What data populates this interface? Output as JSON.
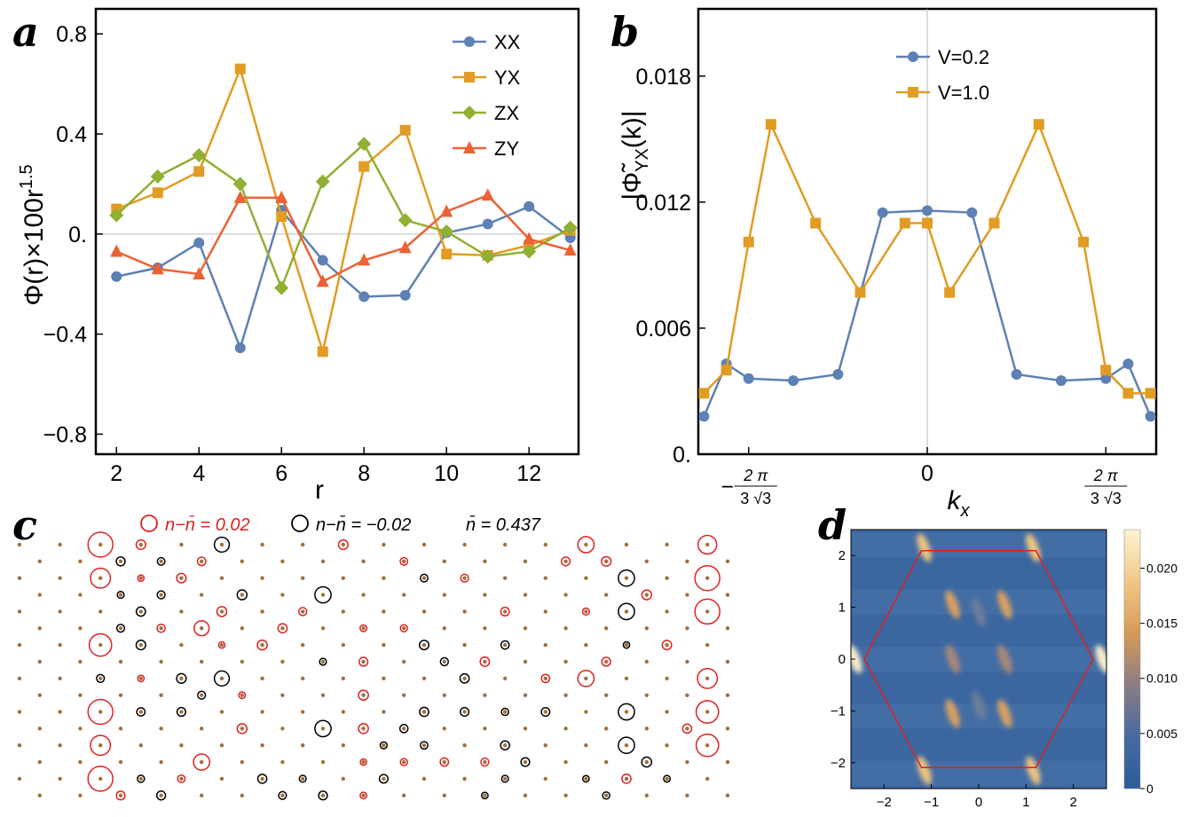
{
  "panel_labels": {
    "a": "a",
    "b": "b",
    "c": "c",
    "d": "d"
  },
  "colors": {
    "blue": "#5e81b5",
    "orange": "#e19c24",
    "green": "#8fb032",
    "red": "#eb6235",
    "lattice_dot": "#a0703a",
    "hexagon": "#e02020"
  },
  "chart_data": [
    {
      "id": "a",
      "type": "line",
      "xlabel": "r",
      "ylabel": "Φ(r)×100r",
      "ylabel_sup": "1.5",
      "xlim": [
        1.5,
        13.2
      ],
      "ylim": [
        -0.88,
        0.9
      ],
      "xticks": [
        2,
        4,
        6,
        8,
        10,
        12
      ],
      "xtick_labels": [
        "2",
        "4",
        "6",
        "8",
        "10",
        "12"
      ],
      "yticks": [
        0.8,
        0.4,
        0.0,
        -0.4,
        -0.8
      ],
      "ytick_labels": [
        "0.8",
        "0.4",
        "0.",
        "−0.4",
        "−0.8"
      ],
      "legend_position": "top-right",
      "x": [
        2,
        3,
        4,
        5,
        6,
        7,
        8,
        9,
        10,
        11,
        12,
        13
      ],
      "series": [
        {
          "name": "XX",
          "color": "#5e81b5",
          "marker": "circle",
          "values": [
            -0.17,
            -0.135,
            -0.035,
            -0.455,
            0.095,
            -0.105,
            -0.25,
            -0.245,
            0.005,
            0.04,
            0.11,
            -0.015
          ]
        },
        {
          "name": "YX",
          "color": "#e19c24",
          "marker": "square",
          "values": [
            0.1,
            0.165,
            0.25,
            0.66,
            0.07,
            -0.47,
            0.27,
            0.415,
            -0.08,
            -0.085,
            -0.045,
            0.015
          ]
        },
        {
          "name": "ZX",
          "color": "#8fb032",
          "marker": "diamond",
          "values": [
            0.075,
            0.23,
            0.315,
            0.2,
            -0.215,
            0.21,
            0.36,
            0.055,
            0.01,
            -0.09,
            -0.07,
            0.025
          ]
        },
        {
          "name": "ZY",
          "color": "#eb6235",
          "marker": "triangle",
          "values": [
            -0.07,
            -0.14,
            -0.16,
            0.145,
            0.145,
            -0.19,
            -0.105,
            -0.055,
            0.09,
            0.155,
            -0.02,
            -0.065
          ]
        }
      ]
    },
    {
      "id": "b",
      "type": "line",
      "xlabel": "k",
      "xlabel_sub": "x",
      "ylabel_main": "|Φ̃",
      "ylabel_sub": "YX",
      "ylabel_tail": "(k)|",
      "xlim": [
        -1.55,
        1.55
      ],
      "ylim": [
        0,
        0.0212
      ],
      "xticks": [
        -1.2092,
        0,
        1.2092
      ],
      "xtick_labels": [
        "−",
        "0",
        ""
      ],
      "xtick_frac_num": "2 π",
      "xtick_frac_den": "3 √3",
      "yticks": [
        0.0,
        0.006,
        0.012,
        0.018
      ],
      "ytick_labels": [
        "0.",
        "0.006",
        "0.012",
        "0.018"
      ],
      "legend_position": "top-left",
      "x": [
        -1.5115,
        -1.3603,
        -1.2092,
        -0.9069,
        -0.6046,
        -0.3023,
        0,
        0.3023,
        0.6046,
        0.9069,
        1.2092,
        1.3603,
        1.5115
      ],
      "series": [
        {
          "name": "V=0.2",
          "color": "#5e81b5",
          "marker": "circle",
          "x": [
            -1.5115,
            -1.3603,
            -1.2092,
            -0.9069,
            -0.6046,
            -0.3023,
            0,
            0.3023,
            0.6046,
            0.9069,
            1.2092,
            1.3603,
            1.5115
          ],
          "values": [
            0.0018,
            0.0043,
            0.0036,
            0.0035,
            0.0038,
            0.0115,
            0.0116,
            0.0115,
            0.0038,
            0.0035,
            0.0036,
            0.0043,
            0.0018
          ]
        },
        {
          "name": "V=1.0",
          "color": "#e19c24",
          "marker": "square",
          "x": [
            -1.5115,
            -1.3603,
            -1.2092,
            -1.0581,
            -0.7558,
            -0.4535,
            -0.1512,
            0,
            0.1512,
            0.4535,
            0.7558,
            1.0581,
            1.2092,
            1.3603,
            1.5115
          ],
          "values": [
            0.0029,
            0.004,
            0.0101,
            0.0157,
            0.011,
            0.0077,
            0.011,
            0.011,
            0.0077,
            0.011,
            0.0157,
            0.0101,
            0.004,
            0.0029,
            0.0029
          ]
        }
      ]
    },
    {
      "id": "c",
      "type": "scatter",
      "legend": [
        {
          "label": "n−n̄ = 0.02",
          "color": "#e02020"
        },
        {
          "label": "n−n̄ = −0.02",
          "color": "#000000"
        },
        {
          "label": "n̄ = 0.437",
          "color": "#000000"
        }
      ],
      "rows": 8,
      "cols": 36,
      "mean_density": 0.437,
      "big_circles": [
        {
          "row": 0,
          "col": 4,
          "dev": 0.02
        },
        {
          "row": 1,
          "col": 4,
          "dev": 0.016
        },
        {
          "row": 3,
          "col": 4,
          "dev": 0.018
        },
        {
          "row": 5,
          "col": 4,
          "dev": 0.02
        },
        {
          "row": 6,
          "col": 4,
          "dev": 0.016
        },
        {
          "row": 7,
          "col": 4,
          "dev": 0.02
        },
        {
          "row": 0,
          "col": 34,
          "dev": 0.015
        },
        {
          "row": 1,
          "col": 34,
          "dev": 0.02
        },
        {
          "row": 2,
          "col": 34,
          "dev": 0.02
        },
        {
          "row": 4,
          "col": 34,
          "dev": 0.016
        },
        {
          "row": 5,
          "col": 34,
          "dev": 0.018
        },
        {
          "row": 6,
          "col": 34,
          "dev": 0.018
        },
        {
          "row": 0,
          "col": 28,
          "dev": 0.013
        },
        {
          "row": 4,
          "col": 28,
          "dev": 0.013
        },
        {
          "row": 2,
          "col": 9,
          "dev": 0.012
        },
        {
          "row": 6,
          "col": 9,
          "dev": 0.013
        },
        {
          "row": 1,
          "col": 15,
          "dev": -0.013
        },
        {
          "row": 5,
          "col": 15,
          "dev": -0.013
        },
        {
          "row": 1,
          "col": 30,
          "dev": -0.013
        },
        {
          "row": 2,
          "col": 30,
          "dev": -0.013
        },
        {
          "row": 5,
          "col": 30,
          "dev": -0.013
        },
        {
          "row": 6,
          "col": 30,
          "dev": -0.013
        },
        {
          "row": 0,
          "col": 10,
          "dev": -0.012
        },
        {
          "row": 4,
          "col": 10,
          "dev": -0.012
        }
      ]
    },
    {
      "id": "d",
      "type": "heatmap",
      "xlim": [
        -2.7,
        2.7
      ],
      "ylim": [
        -2.5,
        2.5
      ],
      "xticks": [
        -2,
        -1,
        0,
        1,
        2
      ],
      "xtick_labels": [
        "−2",
        "−1",
        "0",
        "1",
        "2"
      ],
      "yticks": [
        2,
        1,
        0,
        -1,
        -2
      ],
      "ytick_labels": [
        "2",
        "1",
        "0",
        "−1",
        "−2"
      ],
      "colorbar_range": [
        0,
        0.0235
      ],
      "colorbar_ticks": [
        0,
        0.005,
        0.01,
        0.015,
        0.02
      ],
      "colorbar_tick_labels": [
        "0",
        "0.005",
        "0.010",
        "0.015",
        "0.020"
      ],
      "hexagon": [
        [
          2.418,
          0
        ],
        [
          1.209,
          2.094
        ],
        [
          -1.209,
          2.094
        ],
        [
          -2.418,
          0
        ],
        [
          -1.209,
          -2.094
        ],
        [
          1.209,
          -2.094
        ]
      ],
      "hot_spots": [
        {
          "x": -1.15,
          "y": 2.15,
          "v": 0.018
        },
        {
          "x": 1.15,
          "y": 2.15,
          "v": 0.018
        },
        {
          "x": -1.15,
          "y": -2.15,
          "v": 0.018
        },
        {
          "x": 1.15,
          "y": -2.15,
          "v": 0.018
        },
        {
          "x": -2.62,
          "y": 0,
          "v": 0.022
        },
        {
          "x": 2.62,
          "y": 0,
          "v": 0.022
        },
        {
          "x": -0.55,
          "y": 1.05,
          "v": 0.012
        },
        {
          "x": 0.55,
          "y": 1.05,
          "v": 0.011
        },
        {
          "x": -0.55,
          "y": -1.05,
          "v": 0.012
        },
        {
          "x": 0.55,
          "y": -1.05,
          "v": 0.011
        },
        {
          "x": -0.55,
          "y": 0.0,
          "v": 0.01
        },
        {
          "x": 0.55,
          "y": 0.0,
          "v": 0.01
        },
        {
          "x": 0.0,
          "y": 0.9,
          "v": 0.006
        },
        {
          "x": 0.0,
          "y": -0.9,
          "v": 0.006
        }
      ]
    }
  ]
}
